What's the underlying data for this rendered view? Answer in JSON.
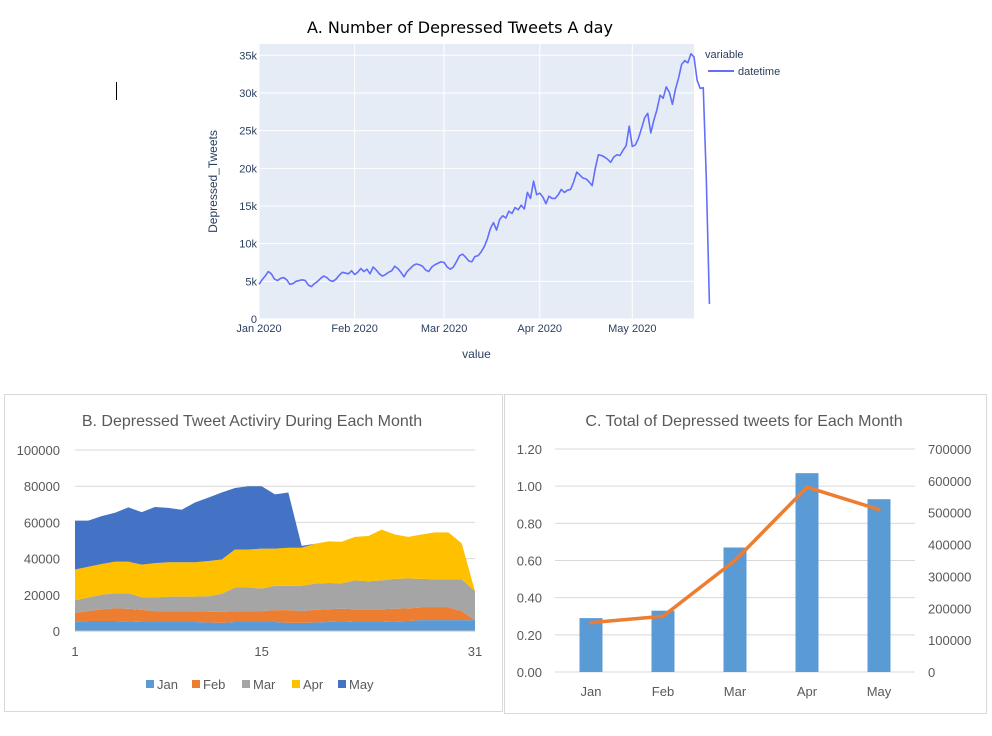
{
  "colors": {
    "plotly_bg": "#e5ecf6",
    "plotly_line": "#636efa",
    "plotly_text": "#2a3f5f",
    "jan": "#5b9bd5",
    "feb": "#ed7d31",
    "mar": "#a5a5a5",
    "apr": "#ffc000",
    "may": "#4472c4",
    "bar": "#5b9bd5",
    "line": "#ed7d31"
  },
  "chart_data": [
    {
      "id": "A",
      "type": "line",
      "title": "A.   Number of Depressed Tweets A day",
      "xlabel": "value",
      "ylabel": "Depressed_Tweets",
      "ylim": [
        0,
        36500
      ],
      "yticks": [
        0,
        5000,
        10000,
        15000,
        20000,
        25000,
        30000,
        35000
      ],
      "ytick_labels": [
        "0",
        "5k",
        "10k",
        "15k",
        "20k",
        "25k",
        "30k",
        "35k"
      ],
      "xticks": [
        0,
        31,
        60,
        91,
        121
      ],
      "xtick_labels": [
        "Jan 2020",
        "Feb 2020",
        "Mar 2020",
        "Apr 2020",
        "May 2020"
      ],
      "x_range": [
        0,
        141
      ],
      "legend_title": "variable",
      "series": [
        {
          "name": "datetime",
          "values": [
            4600,
            5200,
            5700,
            6300,
            6000,
            5300,
            5100,
            5400,
            5500,
            5200,
            4600,
            4700,
            5000,
            5100,
            5200,
            5100,
            4500,
            4300,
            4700,
            5000,
            5400,
            5700,
            5500,
            5100,
            5000,
            5300,
            5800,
            6200,
            6100,
            6000,
            6400,
            5900,
            6200,
            6700,
            6300,
            6600,
            6000,
            6900,
            6500,
            6000,
            5700,
            5900,
            6200,
            6400,
            7000,
            6700,
            6200,
            5600,
            6300,
            6700,
            7100,
            7300,
            7200,
            7000,
            6500,
            6300,
            6900,
            7200,
            7400,
            7600,
            7500,
            6900,
            6600,
            6900,
            7600,
            8400,
            8600,
            8200,
            7700,
            7600,
            8300,
            8400,
            8900,
            9600,
            10600,
            12000,
            12800,
            11800,
            13200,
            13700,
            13400,
            14300,
            14000,
            14800,
            14500,
            15100,
            14600,
            16800,
            16000,
            18300,
            16500,
            16700,
            16200,
            15300,
            16300,
            16000,
            16000,
            16500,
            17200,
            16800,
            17100,
            17200,
            18200,
            19500,
            19100,
            18700,
            18600,
            18200,
            17700,
            20000,
            21800,
            21700,
            21500,
            21200,
            20800,
            21500,
            21800,
            21700,
            22400,
            23000,
            25600,
            22900,
            23100,
            24000,
            25300,
            26700,
            27300,
            24700,
            26400,
            27800,
            29700,
            29300,
            30800,
            30100,
            28500,
            30500,
            32000,
            33800,
            34300,
            34000,
            35200,
            34800,
            31700,
            30600,
            30700,
            18500,
            2000
          ]
        }
      ]
    },
    {
      "id": "B",
      "type": "area",
      "stacked": true,
      "title": "B. Depressed Tweet Activiry During Each Month",
      "ylim": [
        0,
        100000
      ],
      "yticks": [
        0,
        20000,
        40000,
        60000,
        80000,
        100000
      ],
      "ytick_labels": [
        "0",
        "20000",
        "40000",
        "60000",
        "80000",
        "100000"
      ],
      "xtick_labels": [
        "1",
        "15",
        "31"
      ],
      "xticks": [
        1,
        15,
        31
      ],
      "x": [
        1,
        2,
        3,
        4,
        5,
        6,
        7,
        8,
        9,
        10,
        11,
        12,
        13,
        14,
        15,
        16,
        17,
        18,
        19,
        20,
        21,
        22,
        23,
        24,
        25,
        26,
        27,
        28,
        29,
        30,
        31
      ],
      "series": [
        {
          "name": "Jan",
          "values": [
            5000,
            5500,
            5500,
            5500,
            5300,
            5000,
            5000,
            5000,
            5000,
            5000,
            4700,
            4500,
            5000,
            5000,
            5000,
            5000,
            4500,
            4500,
            4700,
            5000,
            5300,
            5000,
            5000,
            5000,
            5300,
            5500,
            6000,
            6000,
            6000,
            6000,
            6000
          ]
        },
        {
          "name": "Feb",
          "values": [
            5000,
            5500,
            6500,
            7000,
            7000,
            6700,
            6000,
            6000,
            6000,
            6000,
            6000,
            6000,
            6000,
            6000,
            6000,
            6500,
            7000,
            6500,
            7000,
            7000,
            7000,
            7000,
            7000,
            7000,
            7000,
            7000,
            7000,
            7000,
            7000,
            5000,
            0
          ]
        },
        {
          "name": "Mar",
          "values": [
            7000,
            7500,
            8000,
            8300,
            8500,
            7000,
            7500,
            8000,
            8000,
            8000,
            8500,
            10000,
            13000,
            13000,
            12500,
            13500,
            13500,
            14000,
            14500,
            14500,
            14000,
            16000,
            15500,
            16000,
            16500,
            16500,
            15800,
            15500,
            15500,
            17500,
            16000
          ]
        },
        {
          "name": "Apr",
          "values": [
            17000,
            17000,
            17000,
            17500,
            17500,
            18000,
            19000,
            19000,
            19000,
            19000,
            19500,
            19000,
            21000,
            21000,
            22000,
            20500,
            21000,
            21000,
            22000,
            23000,
            23000,
            24000,
            25000,
            28000,
            24500,
            23000,
            24500,
            26000,
            26000,
            20000,
            0
          ]
        },
        {
          "name": "May",
          "values": [
            27000,
            25500,
            26500,
            27000,
            30000,
            29000,
            31000,
            30000,
            29000,
            33000,
            35000,
            37000,
            34000,
            35000,
            34500,
            30000,
            30500,
            1000,
            0,
            0,
            0,
            0,
            0,
            0,
            0,
            0,
            0,
            0,
            0,
            0,
            0
          ]
        }
      ],
      "legend": [
        "Jan",
        "Feb",
        "Mar",
        "Apr",
        "May"
      ]
    },
    {
      "id": "C",
      "type": "bar+line",
      "title": "C. Total of Depressed tweets for Each Month",
      "categories": [
        "Jan",
        "Feb",
        "Mar",
        "Apr",
        "May"
      ],
      "bar_values": [
        0.29,
        0.33,
        0.67,
        1.07,
        0.93
      ],
      "line_values": [
        155000,
        175000,
        350000,
        580000,
        510000
      ],
      "y1lim": [
        0,
        1.2
      ],
      "y1ticks": [
        "0.00",
        "0.20",
        "0.40",
        "0.60",
        "0.80",
        "1.00",
        "1.20"
      ],
      "y2lim": [
        0,
        700000
      ],
      "y2ticks": [
        "0",
        "100000",
        "200000",
        "300000",
        "400000",
        "500000",
        "600000",
        "700000"
      ]
    }
  ]
}
